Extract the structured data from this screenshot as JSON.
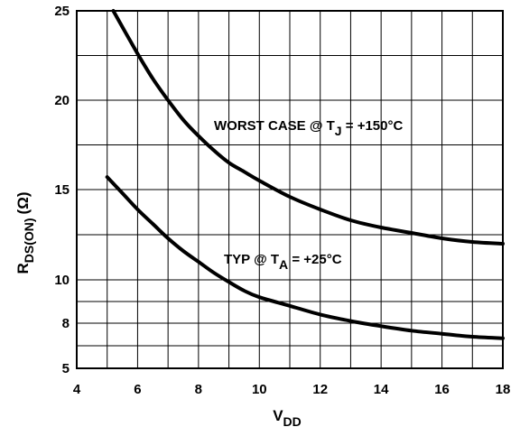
{
  "chart_data": {
    "type": "line",
    "xlabel": {
      "main": "V",
      "sub": "DD"
    },
    "ylabel": {
      "main": "R",
      "sub": "DS(ON)",
      "unit": "(Ω)"
    },
    "xlim": [
      4,
      18
    ],
    "ylim": [
      5,
      25
    ],
    "x_ticks": [
      4,
      6,
      8,
      10,
      12,
      14,
      16,
      18
    ],
    "y_ticks": [
      5,
      8,
      10,
      15,
      20,
      25
    ],
    "grid": true,
    "series": [
      {
        "annotation": {
          "text": "WORST CASE @ T",
          "sub": "J",
          "suffix": " = +150°C"
        },
        "x": [
          5.2,
          5.6,
          6,
          6.5,
          7,
          7.5,
          8,
          8.5,
          9,
          9.5,
          10,
          11,
          12,
          13,
          14,
          15,
          16,
          17,
          18
        ],
        "y": [
          25,
          23.8,
          22.6,
          21.2,
          20.0,
          18.9,
          18.0,
          17.2,
          16.5,
          16.0,
          15.5,
          14.6,
          13.9,
          13.3,
          12.9,
          12.6,
          12.3,
          12.1,
          12.0
        ]
      },
      {
        "annotation": {
          "text": "TYP @ T",
          "sub": "A",
          "suffix": " = +25°C"
        },
        "x": [
          5,
          5.5,
          6,
          6.5,
          7,
          7.5,
          8,
          8.5,
          9,
          9.5,
          10,
          11,
          12,
          13,
          14,
          15,
          16,
          17,
          18
        ],
        "y": [
          15.7,
          14.8,
          13.9,
          13.1,
          12.3,
          11.6,
          11.0,
          10.4,
          9.9,
          9.5,
          9.2,
          8.8,
          8.4,
          8.1,
          7.8,
          7.5,
          7.3,
          7.1,
          7.0
        ]
      }
    ]
  }
}
